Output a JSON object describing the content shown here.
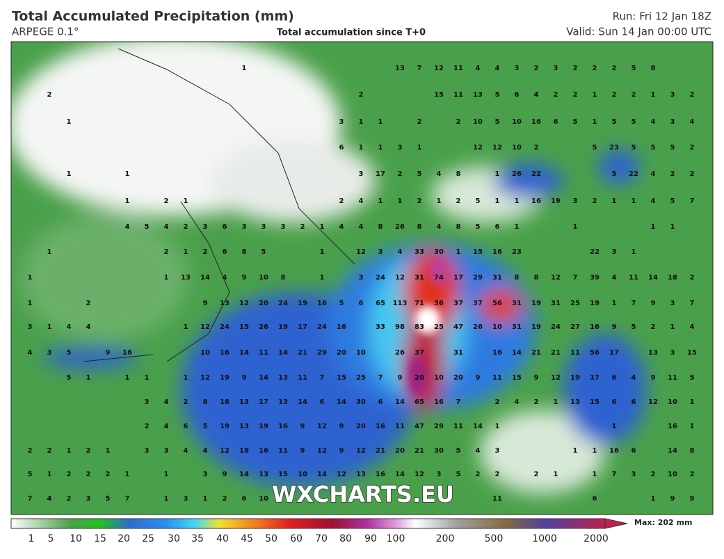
{
  "header": {
    "title": "Total Accumulated Precipitation (mm)",
    "model": "ARPEGE 0.1°",
    "subtitle": "Total accumulation since T+0",
    "run": "Run: Fri 12 Jan 18Z",
    "valid": "Valid: Sun 14 Jan 00:00 UTC"
  },
  "map": {
    "watermark": "WXCHARTS.EU",
    "labels": [
      [
        null,
        null,
        null,
        null,
        null,
        null,
        null,
        null,
        null,
        null,
        null,
        1,
        null,
        null,
        null,
        null,
        null,
        null,
        null,
        13,
        7,
        12,
        11,
        4,
        4,
        3,
        2,
        3,
        2,
        2,
        2,
        5,
        8,
        null,
        null
      ],
      [
        null,
        2,
        null,
        null,
        null,
        null,
        null,
        null,
        null,
        null,
        null,
        null,
        null,
        null,
        null,
        null,
        null,
        2,
        null,
        null,
        null,
        15,
        11,
        13,
        5,
        6,
        4,
        2,
        2,
        1,
        2,
        2,
        1,
        3,
        2
      ],
      [
        null,
        null,
        1,
        null,
        null,
        null,
        null,
        null,
        null,
        null,
        null,
        null,
        null,
        null,
        null,
        null,
        3,
        1,
        1,
        null,
        2,
        null,
        2,
        10,
        5,
        10,
        16,
        6,
        5,
        1,
        5,
        5,
        4,
        3,
        4
      ],
      [
        null,
        null,
        null,
        null,
        null,
        null,
        null,
        null,
        null,
        null,
        null,
        null,
        null,
        null,
        null,
        null,
        6,
        1,
        1,
        3,
        1,
        null,
        null,
        12,
        12,
        10,
        2,
        null,
        null,
        5,
        23,
        5,
        5,
        5,
        2
      ],
      [
        null,
        null,
        1,
        null,
        null,
        1,
        null,
        null,
        null,
        null,
        null,
        null,
        null,
        null,
        null,
        null,
        null,
        3,
        17,
        2,
        5,
        4,
        8,
        null,
        1,
        26,
        22,
        null,
        null,
        null,
        5,
        22,
        4,
        2,
        2
      ],
      [
        null,
        null,
        null,
        null,
        null,
        1,
        null,
        2,
        1,
        null,
        null,
        null,
        null,
        null,
        null,
        null,
        2,
        4,
        1,
        1,
        2,
        1,
        2,
        5,
        1,
        1,
        16,
        19,
        3,
        2,
        1,
        1,
        4,
        5,
        7
      ],
      [
        null,
        null,
        null,
        null,
        null,
        4,
        5,
        4,
        2,
        3,
        6,
        3,
        3,
        3,
        2,
        1,
        4,
        4,
        8,
        26,
        8,
        4,
        8,
        5,
        6,
        1,
        null,
        null,
        1,
        null,
        null,
        null,
        1,
        1,
        null
      ],
      [
        null,
        1,
        null,
        null,
        null,
        null,
        null,
        2,
        1,
        2,
        6,
        8,
        5,
        null,
        null,
        1,
        null,
        12,
        3,
        4,
        33,
        30,
        1,
        15,
        16,
        23,
        null,
        null,
        null,
        22,
        3,
        1,
        null,
        null,
        null
      ],
      [
        1,
        null,
        null,
        null,
        null,
        null,
        null,
        1,
        13,
        14,
        4,
        9,
        10,
        8,
        null,
        1,
        null,
        3,
        24,
        12,
        31,
        74,
        17,
        29,
        31,
        8,
        8,
        12,
        7,
        39,
        4,
        11,
        14,
        18,
        2
      ],
      [
        1,
        null,
        null,
        2,
        null,
        null,
        null,
        null,
        null,
        9,
        13,
        12,
        20,
        24,
        19,
        16,
        5,
        6,
        65,
        113,
        71,
        36,
        37,
        37,
        56,
        31,
        19,
        31,
        25,
        19,
        1,
        7,
        9,
        3,
        7
      ],
      [
        3,
        1,
        4,
        4,
        null,
        null,
        null,
        null,
        1,
        12,
        24,
        15,
        26,
        19,
        17,
        24,
        16,
        null,
        33,
        98,
        83,
        25,
        47,
        26,
        10,
        31,
        19,
        24,
        27,
        16,
        9,
        5,
        2,
        1,
        4
      ],
      [
        4,
        3,
        5,
        null,
        9,
        16,
        null,
        null,
        null,
        10,
        16,
        14,
        11,
        14,
        21,
        29,
        20,
        10,
        null,
        26,
        37,
        null,
        31,
        null,
        16,
        14,
        21,
        21,
        11,
        56,
        17,
        null,
        13,
        3,
        15
      ],
      [
        null,
        null,
        5,
        1,
        null,
        1,
        1,
        null,
        1,
        12,
        19,
        9,
        14,
        13,
        11,
        7,
        15,
        25,
        7,
        9,
        20,
        10,
        20,
        9,
        11,
        15,
        9,
        12,
        19,
        17,
        6,
        4,
        9,
        11,
        5
      ],
      [
        null,
        null,
        null,
        null,
        null,
        null,
        3,
        4,
        2,
        8,
        18,
        13,
        17,
        13,
        14,
        6,
        14,
        30,
        6,
        14,
        65,
        16,
        7,
        null,
        2,
        4,
        2,
        1,
        13,
        15,
        6,
        6,
        12,
        10,
        1
      ],
      [
        null,
        null,
        null,
        null,
        null,
        null,
        2,
        4,
        6,
        5,
        19,
        13,
        19,
        16,
        9,
        12,
        9,
        20,
        16,
        11,
        47,
        29,
        11,
        14,
        1,
        null,
        null,
        null,
        null,
        null,
        1,
        null,
        null,
        16,
        1
      ],
      [
        2,
        2,
        1,
        2,
        1,
        null,
        3,
        3,
        4,
        4,
        12,
        18,
        16,
        11,
        9,
        12,
        9,
        12,
        21,
        20,
        21,
        30,
        5,
        4,
        3,
        null,
        null,
        null,
        1,
        1,
        16,
        6,
        null,
        14,
        8
      ],
      [
        5,
        1,
        2,
        2,
        2,
        1,
        null,
        1,
        null,
        3,
        9,
        14,
        13,
        15,
        10,
        14,
        12,
        13,
        16,
        14,
        12,
        3,
        5,
        2,
        2,
        null,
        2,
        1,
        null,
        1,
        7,
        3,
        2,
        10,
        2
      ],
      [
        7,
        4,
        2,
        3,
        5,
        7,
        null,
        1,
        3,
        1,
        2,
        6,
        10,
        null,
        null,
        null,
        null,
        null,
        null,
        null,
        null,
        null,
        null,
        null,
        11,
        null,
        null,
        null,
        null,
        6,
        null,
        null,
        1,
        9,
        9
      ]
    ]
  },
  "legend": {
    "ticks": [
      1,
      5,
      10,
      15,
      20,
      25,
      30,
      35,
      40,
      45,
      50,
      60,
      70,
      80,
      90,
      100,
      200,
      500,
      1000,
      2000
    ],
    "max": "Max: 202 mm"
  }
}
